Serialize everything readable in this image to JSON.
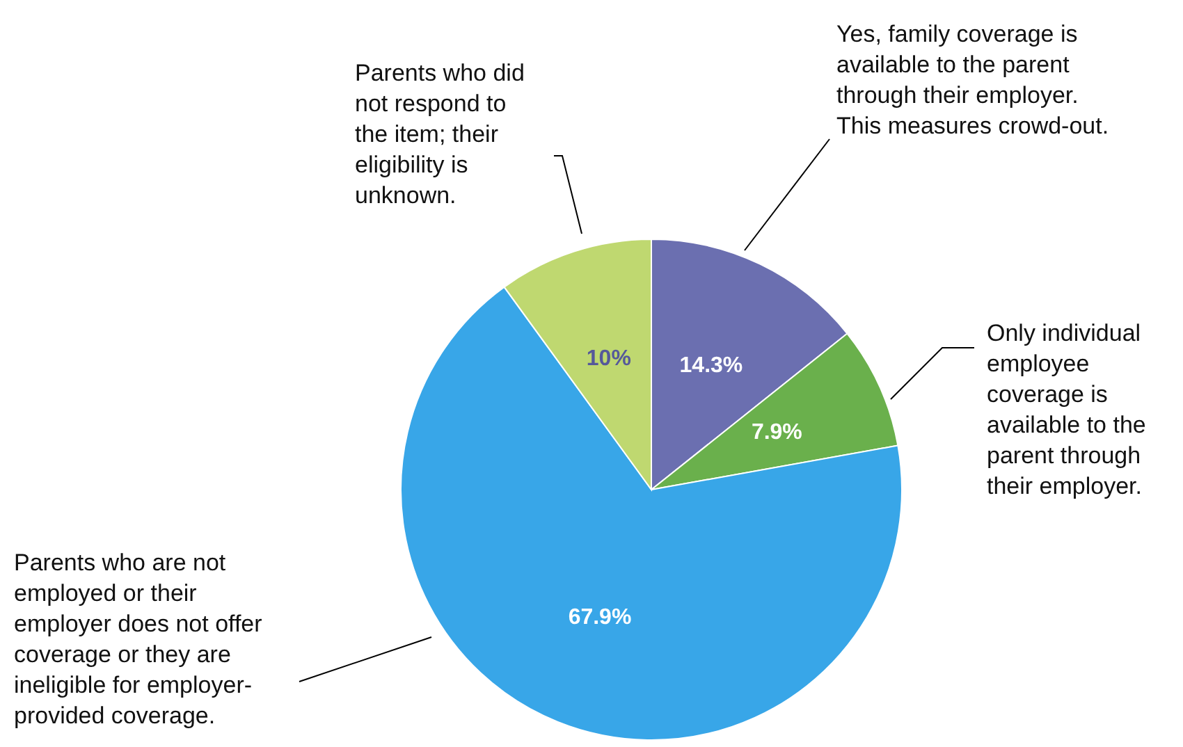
{
  "chart_data": {
    "type": "pie",
    "categories": [
      "Yes, family coverage is available to the parent through their employer. This measures crowd-out.",
      "Only individual employee coverage is available to the parent through their employer.",
      "Parents who are not employed or their employer does not offer coverage or they are ineligible for employer-provided coverage.",
      "Parents who did not respond to the item; their eligibility is unknown."
    ],
    "values": [
      14.3,
      7.9,
      67.9,
      10
    ],
    "colors": [
      "#6b6fb0",
      "#6ab04c",
      "#38a6e8",
      "#bfd870"
    ],
    "value_labels": [
      "14.3%",
      "7.9%",
      "67.9%",
      "10%"
    ]
  }
}
